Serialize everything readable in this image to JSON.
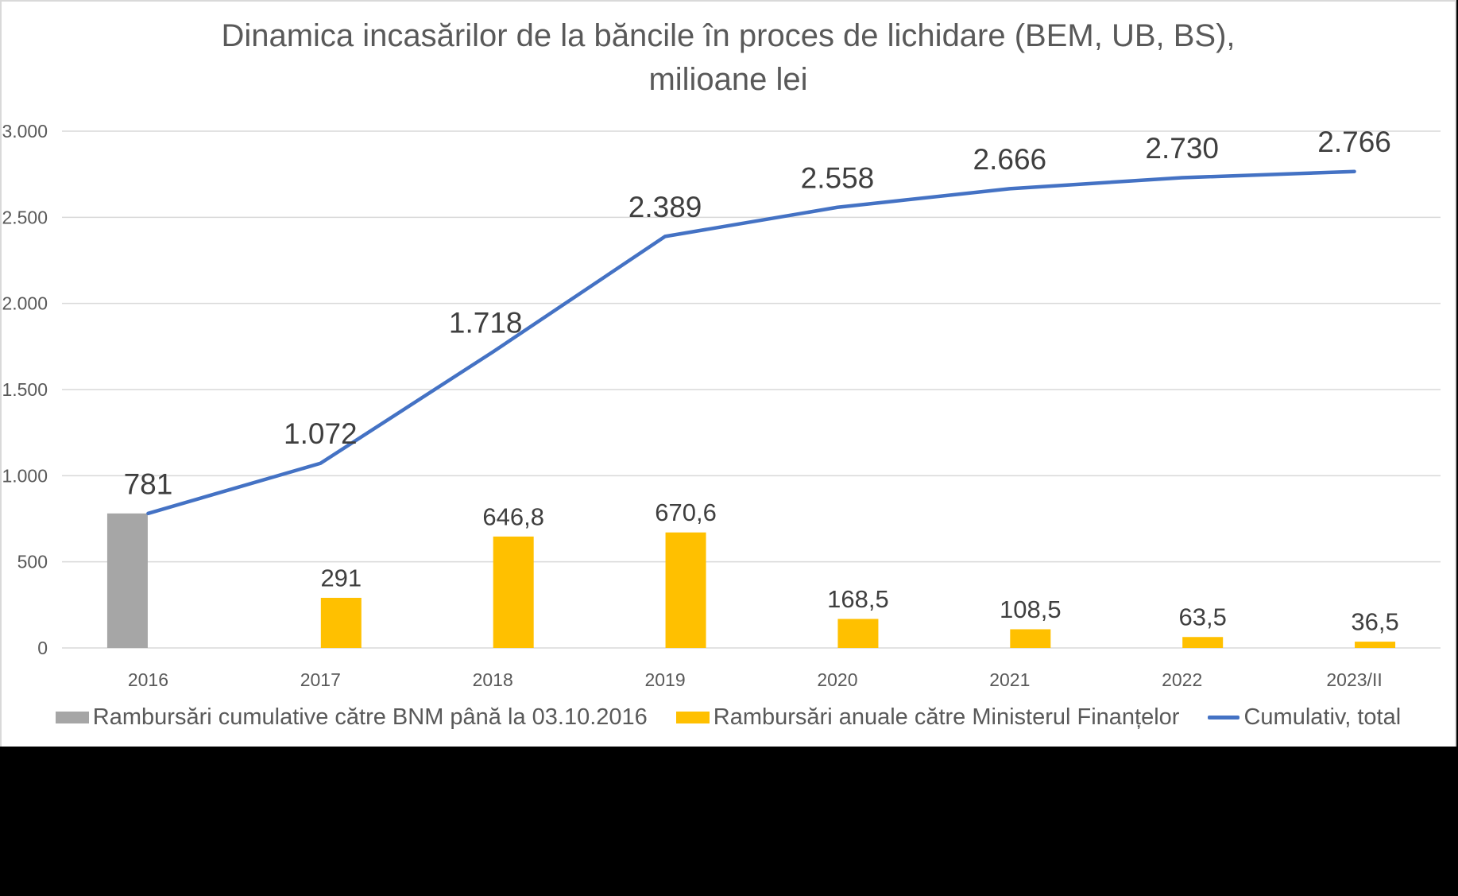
{
  "title": {
    "line1": "Dinamica incasărilor de la băncile în proces de lichidare (BEM, UB, BS),",
    "line2": "milioane lei"
  },
  "chart_data": {
    "type": "combo",
    "categories": [
      "2016",
      "2017",
      "2018",
      "2019",
      "2020",
      "2021",
      "2022",
      "2023/II"
    ],
    "series": [
      {
        "name": "Rambursări cumulative către BNM până la 03.10.2016",
        "type": "bar",
        "color": "#A6A6A6",
        "values": [
          781,
          null,
          null,
          null,
          null,
          null,
          null,
          null
        ],
        "labels": [
          "",
          "",
          "",
          "",
          "",
          "",
          "",
          ""
        ]
      },
      {
        "name": "Rambursări anuale către Ministerul Finanțelor",
        "type": "bar",
        "color": "#FFC000",
        "values": [
          null,
          291,
          646.8,
          670.6,
          168.5,
          108.5,
          63.5,
          36.5
        ],
        "labels": [
          "",
          "291",
          "646,8",
          "670,6",
          "168,5",
          "108,5",
          "63,5",
          "36,5"
        ]
      },
      {
        "name": "Cumulativ, total",
        "type": "line",
        "color": "#4472C4",
        "values": [
          781,
          1072,
          1718,
          2389,
          2558,
          2666,
          2730,
          2766
        ],
        "labels": [
          "781",
          "1.072",
          "1.718",
          "2.389",
          "2.558",
          "2.666",
          "2.730",
          "2.766"
        ]
      }
    ],
    "y_axis": {
      "min": 0,
      "max": 3000,
      "step": 500,
      "tick_labels": [
        "0",
        "500",
        "1.000",
        "1.500",
        "2.000",
        "2.500",
        "3.000"
      ]
    },
    "grid": true,
    "legend_position": "bottom"
  },
  "colors": {
    "title_text": "#595959",
    "axis_label_text": "#595959",
    "data_label_text": "#3F3F3F",
    "gridline": "#D9D9D9",
    "chart_background": "#FFFFFF",
    "page_background": "#000000"
  }
}
